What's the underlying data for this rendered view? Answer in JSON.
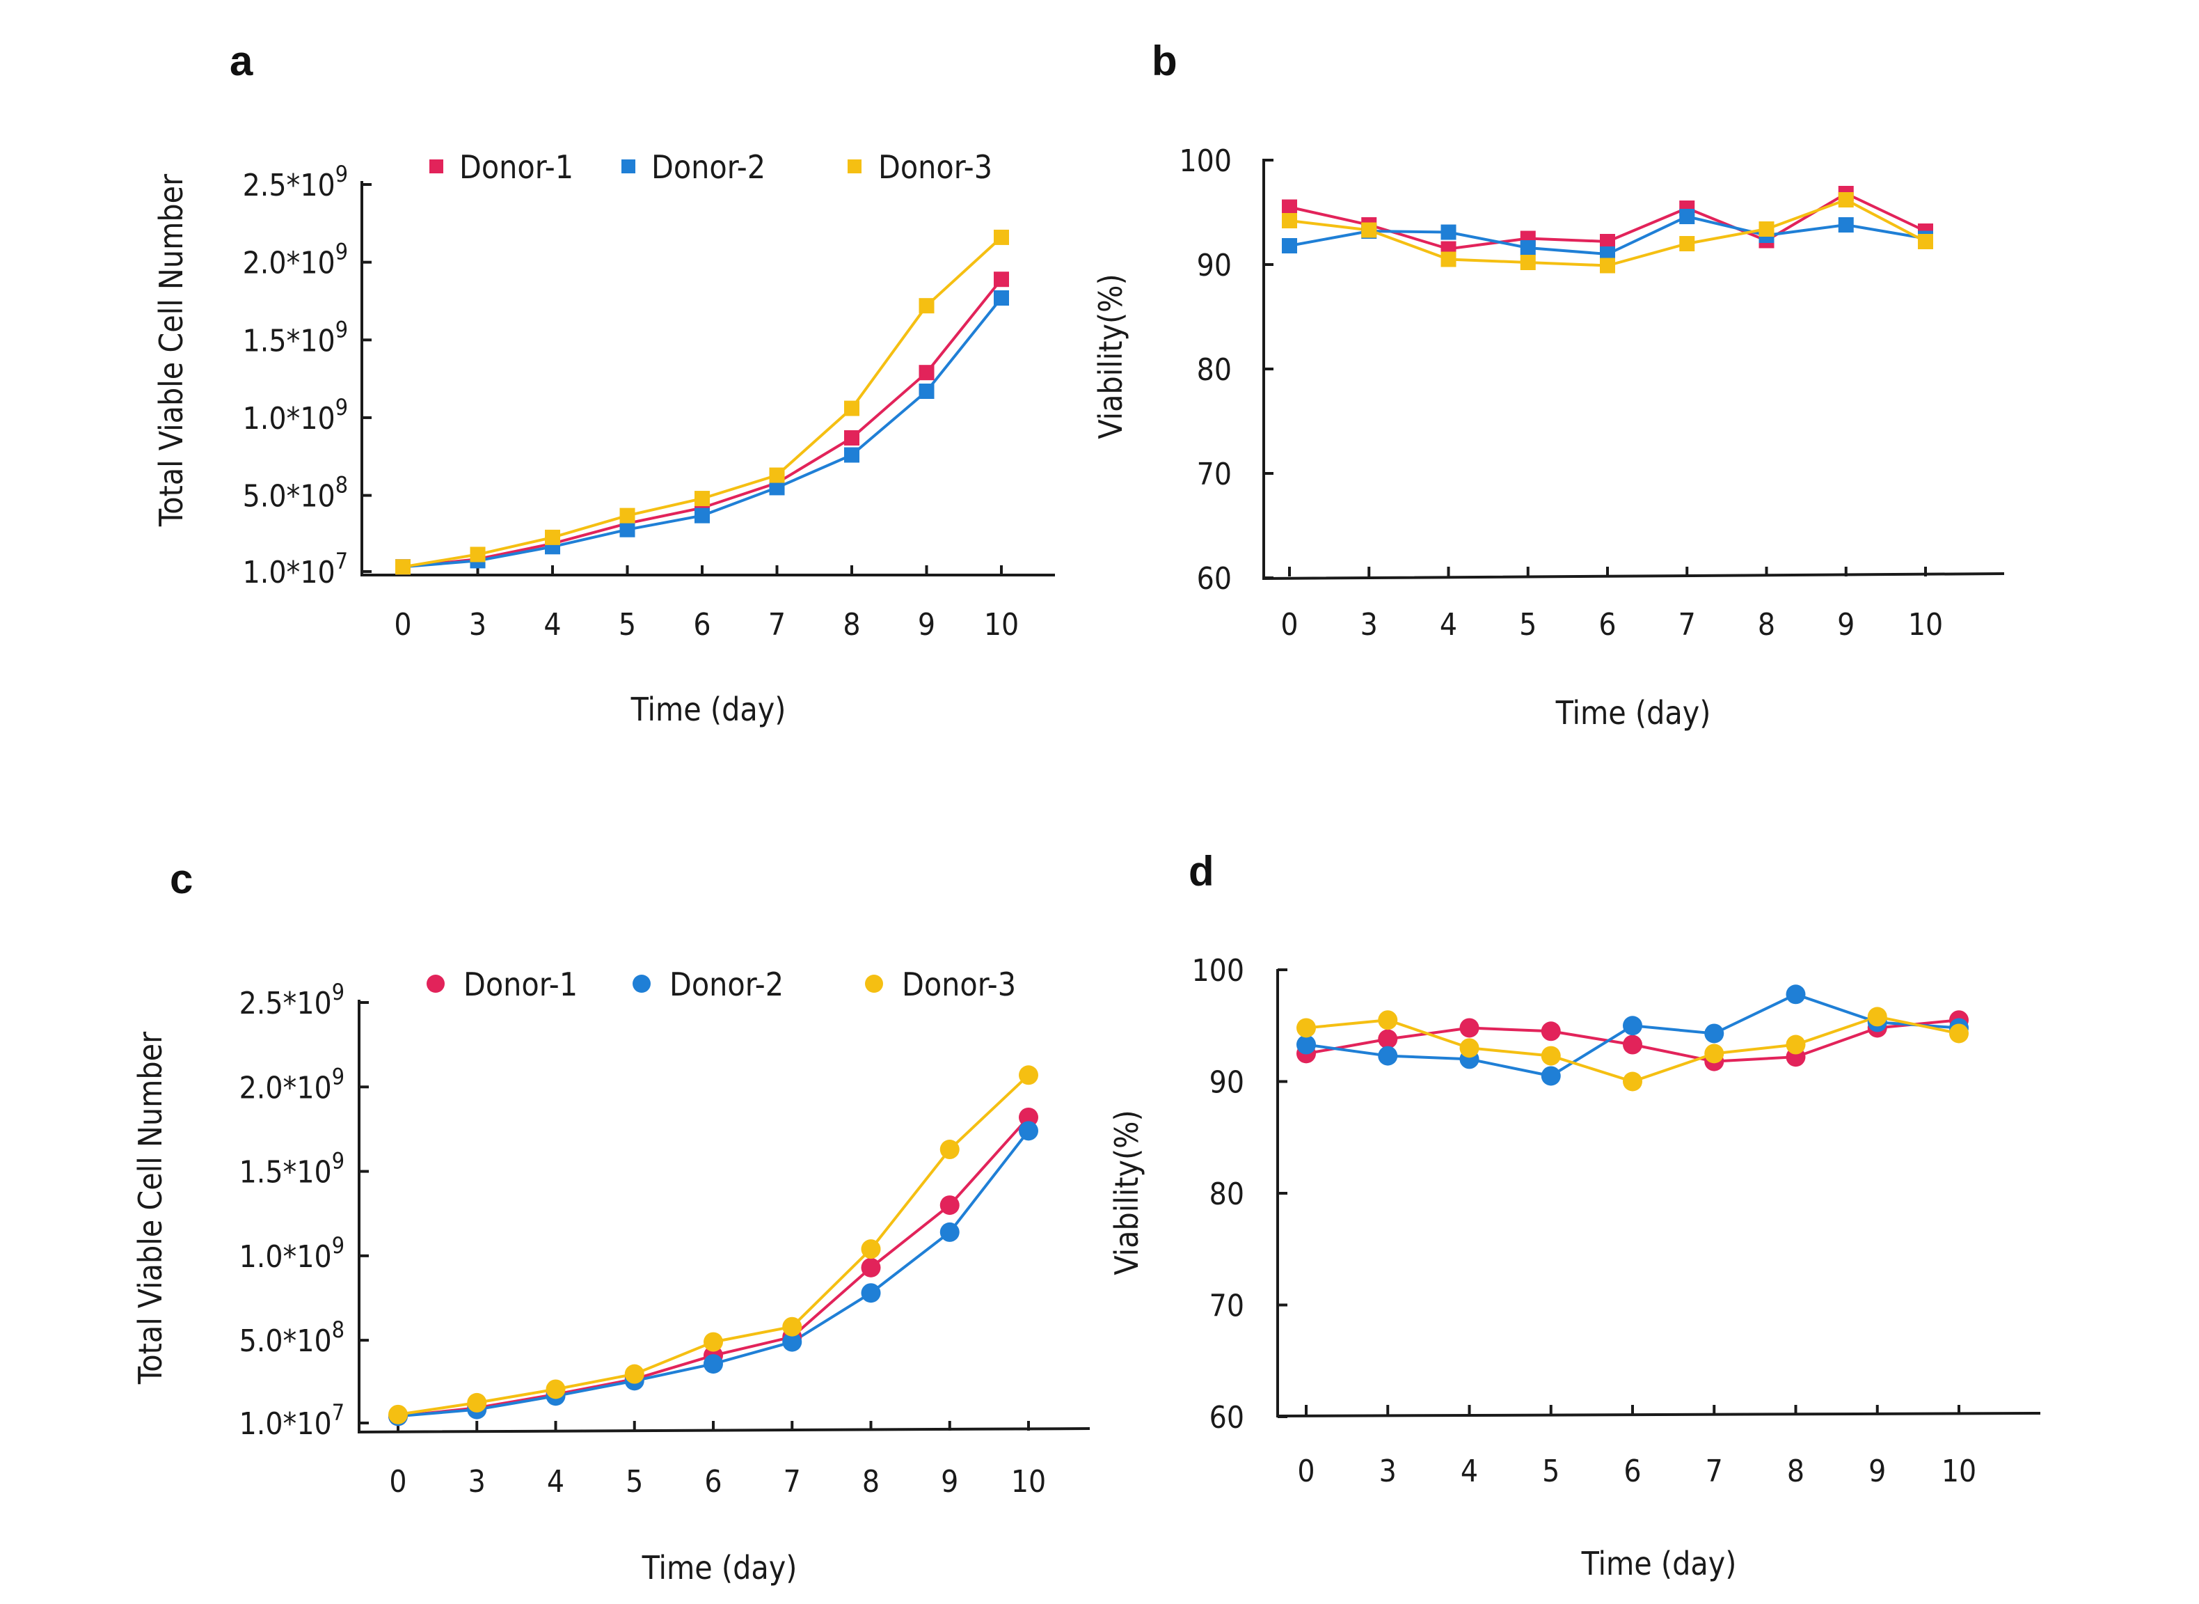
{
  "colors": {
    "donor1": "#e2235a",
    "donor2": "#1f7fd6",
    "donor3": "#f5bf12"
  },
  "chart_data": [
    {
      "panel": "a",
      "type": "line",
      "marker": "square",
      "categories": [
        "0",
        "3",
        "4",
        "5",
        "6",
        "7",
        "8",
        "9",
        "10"
      ],
      "xlabel": "Time (day)",
      "ylabel": "Total Viable Cell Number",
      "ylim": [
        10000000,
        2500000000
      ],
      "yticks": [
        {
          "value": 10000000,
          "base": "1.0*10",
          "exp": "7"
        },
        {
          "value": 500000000,
          "base": "5.0*10",
          "exp": "8"
        },
        {
          "value": 1000000000,
          "base": "1.0*10",
          "exp": "9"
        },
        {
          "value": 1500000000,
          "base": "1.5*10",
          "exp": "9"
        },
        {
          "value": 2000000000,
          "base": "2.0*10",
          "exp": "9"
        },
        {
          "value": 2500000000,
          "base": "2.5*10",
          "exp": "9"
        }
      ],
      "legend": "top",
      "series": [
        {
          "name": "Donor-1",
          "color": "#e2235a",
          "values": [
            40000000,
            90000000,
            190000000,
            320000000,
            420000000,
            580000000,
            870000000,
            1290000000,
            1890000000
          ]
        },
        {
          "name": "Donor-2",
          "color": "#1f7fd6",
          "values": [
            40000000,
            80000000,
            170000000,
            280000000,
            370000000,
            550000000,
            760000000,
            1170000000,
            1770000000
          ]
        },
        {
          "name": "Donor-3",
          "color": "#f5bf12",
          "values": [
            40000000,
            120000000,
            230000000,
            370000000,
            480000000,
            630000000,
            1060000000,
            1720000000,
            2160000000
          ]
        }
      ]
    },
    {
      "panel": "b",
      "type": "line",
      "marker": "square",
      "categories": [
        "0",
        "3",
        "4",
        "5",
        "6",
        "7",
        "8",
        "9",
        "10"
      ],
      "xlabel": "Time (day)",
      "ylabel": "Viability(%)",
      "ylim": [
        60,
        100
      ],
      "yticks": [
        {
          "value": 60,
          "base": "60"
        },
        {
          "value": 70,
          "base": "70"
        },
        {
          "value": 80,
          "base": "80"
        },
        {
          "value": 90,
          "base": "90"
        },
        {
          "value": 100,
          "base": "100"
        }
      ],
      "series": [
        {
          "name": "Donor-1",
          "color": "#e2235a",
          "values": [
            95.5,
            93.8,
            91.5,
            92.5,
            92.2,
            95.4,
            92.3,
            96.8,
            93.2
          ]
        },
        {
          "name": "Donor-2",
          "color": "#1f7fd6",
          "values": [
            91.8,
            93.2,
            93.1,
            91.6,
            91.0,
            94.6,
            92.8,
            93.8,
            92.5
          ]
        },
        {
          "name": "Donor-3",
          "color": "#f5bf12",
          "values": [
            94.2,
            93.3,
            90.5,
            90.2,
            89.9,
            92.0,
            93.4,
            96.2,
            92.2
          ]
        }
      ]
    },
    {
      "panel": "c",
      "type": "line",
      "marker": "circle",
      "categories": [
        "0",
        "3",
        "4",
        "5",
        "6",
        "7",
        "8",
        "9",
        "10"
      ],
      "xlabel": "Time (day)",
      "ylabel": "Total Viable Cell Number",
      "ylim": [
        10000000,
        2500000000
      ],
      "yticks": [
        {
          "value": 10000000,
          "base": "1.0*10",
          "exp": "7"
        },
        {
          "value": 500000000,
          "base": "5.0*10",
          "exp": "8"
        },
        {
          "value": 1000000000,
          "base": "1.0*10",
          "exp": "9"
        },
        {
          "value": 1500000000,
          "base": "1.5*10",
          "exp": "9"
        },
        {
          "value": 2000000000,
          "base": "2.0*10",
          "exp": "9"
        },
        {
          "value": 2500000000,
          "base": "2.5*10",
          "exp": "9"
        }
      ],
      "legend": "top",
      "series": [
        {
          "name": "Donor-1",
          "color": "#e2235a",
          "values": [
            50000000,
            100000000,
            180000000,
            270000000,
            410000000,
            520000000,
            930000000,
            1300000000,
            1820000000
          ]
        },
        {
          "name": "Donor-2",
          "color": "#1f7fd6",
          "values": [
            50000000,
            90000000,
            170000000,
            260000000,
            360000000,
            490000000,
            780000000,
            1140000000,
            1740000000
          ]
        },
        {
          "name": "Donor-3",
          "color": "#f5bf12",
          "values": [
            60000000,
            130000000,
            210000000,
            300000000,
            490000000,
            580000000,
            1040000000,
            1630000000,
            2070000000
          ]
        }
      ]
    },
    {
      "panel": "d",
      "type": "line",
      "marker": "circle",
      "categories": [
        "0",
        "3",
        "4",
        "5",
        "6",
        "7",
        "8",
        "9",
        "10"
      ],
      "xlabel": "Time (day)",
      "ylabel": "Viability(%)",
      "ylim": [
        60,
        100
      ],
      "yticks": [
        {
          "value": 60,
          "base": "60"
        },
        {
          "value": 70,
          "base": "70"
        },
        {
          "value": 80,
          "base": "80"
        },
        {
          "value": 90,
          "base": "90"
        },
        {
          "value": 100,
          "base": "100"
        }
      ],
      "series": [
        {
          "name": "Donor-1",
          "color": "#e2235a",
          "values": [
            92.5,
            93.8,
            94.8,
            94.5,
            93.3,
            91.8,
            92.2,
            94.8,
            95.5
          ]
        },
        {
          "name": "Donor-2",
          "color": "#1f7fd6",
          "values": [
            93.3,
            92.3,
            92.0,
            90.5,
            95.0,
            94.3,
            97.8,
            95.3,
            94.8
          ]
        },
        {
          "name": "Donor-3",
          "color": "#f5bf12",
          "values": [
            94.8,
            95.5,
            93.0,
            92.3,
            90.0,
            92.5,
            93.3,
            95.8,
            94.3
          ]
        }
      ]
    }
  ]
}
